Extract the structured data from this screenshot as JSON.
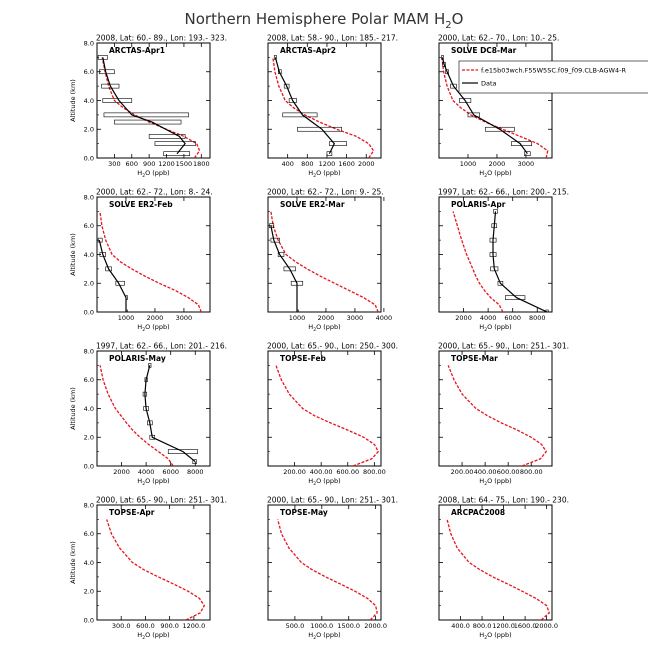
{
  "figure": {
    "title": "Northern Hemisphere Polar MAM H",
    "title_sub": "2",
    "title_tail": "O",
    "xlabel_main": "H",
    "xlabel_sub": "2",
    "xlabel_tail": "O (ppb)",
    "ylabel": "Altitude (km)",
    "legend": {
      "model_label": "f.e15b03wch.F55W5SC.f09_f09.CLB-AGW4-R",
      "obs_label": "Data"
    },
    "colors": {
      "model": "#e8141c",
      "obs": "#000000",
      "axis": "#000000"
    }
  },
  "chart_data": [
    {
      "type": "line",
      "header": "2008, Lat: 60.- 89., Lon: 193.- 323.",
      "campaign": "ARCTAS-Apr1",
      "xlim": [
        0,
        1950
      ],
      "ylim": [
        0,
        8
      ],
      "xticks": [
        300,
        600,
        900,
        1200,
        1500,
        1800
      ],
      "xticklabels": [
        "300",
        "600",
        "900",
        "1200",
        "1500",
        "1800"
      ],
      "yticks": [
        0,
        2,
        4,
        6,
        8
      ],
      "yticklabels": [
        "0.0",
        "2.0",
        "4.0",
        "6.0",
        "8.0"
      ],
      "series": [
        {
          "role": "model",
          "x": [
            1680,
            1770,
            1720,
            1500,
            1200,
            900,
            650,
            450,
            300,
            200,
            140,
            90
          ],
          "y": [
            0,
            0.5,
            1,
            1.5,
            2,
            2.5,
            3,
            3.5,
            4,
            5,
            6,
            7
          ]
        },
        {
          "role": "obs",
          "x": [
            1380,
            1520,
            1420,
            950,
            600,
            380,
            230,
            150,
            100
          ],
          "y": [
            0.3,
            1,
            1.5,
            2.5,
            3,
            4,
            5,
            6,
            7
          ],
          "xerr_lo": [
            1150,
            1000,
            900,
            300,
            120,
            100,
            80,
            40,
            20
          ],
          "xerr_hi": [
            1600,
            1700,
            1520,
            1450,
            1580,
            600,
            380,
            300,
            180
          ]
        }
      ]
    },
    {
      "type": "line",
      "header": "2008, Lat: 58.- 90., Lon: 185.- 217.",
      "campaign": "ARCTAS-Apr2",
      "xlim": [
        0,
        2300
      ],
      "ylim": [
        0,
        8
      ],
      "xticks": [
        400,
        800,
        1200,
        1600,
        2000
      ],
      "xticklabels": [
        "400",
        "800",
        "1200",
        "1600",
        "2000"
      ],
      "yticks": [
        0,
        2,
        4,
        6,
        8
      ],
      "yticklabels": [
        "0.0",
        "2.0",
        "4.0",
        "6.0",
        "8.0"
      ],
      "series": [
        {
          "role": "model",
          "x": [
            2050,
            2150,
            2050,
            1800,
            1400,
            1050,
            750,
            520,
            350,
            220,
            140,
            100
          ],
          "y": [
            0,
            0.5,
            1,
            1.5,
            2,
            2.5,
            3,
            3.5,
            4,
            5,
            6,
            7
          ]
        },
        {
          "role": "obs",
          "x": [
            1250,
            1350,
            1100,
            700,
            500,
            380,
            230,
            150
          ],
          "y": [
            0.3,
            1,
            2,
            3,
            4,
            5,
            6,
            7
          ],
          "xerr_lo": [
            1200,
            1250,
            600,
            300,
            430,
            330,
            210,
            130
          ],
          "xerr_hi": [
            1300,
            1600,
            1500,
            1000,
            580,
            430,
            270,
            170
          ]
        }
      ]
    },
    {
      "type": "line",
      "header": "2000, Lat: 62.- 70., Lon: 10.- 25.",
      "campaign": "SOLVE DC8-Mar",
      "xlim": [
        0,
        3900
      ],
      "ylim": [
        0,
        8
      ],
      "xticks": [
        1000,
        2000,
        3000
      ],
      "xticklabels": [
        "1000",
        "2000",
        "3000"
      ],
      "yticks": [
        0,
        2,
        4,
        6,
        8
      ],
      "yticklabels": [
        "0.0",
        "2.0",
        "4.0",
        "6.0",
        "8.0"
      ],
      "series": [
        {
          "role": "model",
          "x": [
            3700,
            3750,
            3400,
            2800,
            2200,
            1600,
            1100,
            750,
            480,
            280,
            160,
            100
          ],
          "y": [
            0,
            0.5,
            1,
            1.5,
            2,
            2.5,
            3,
            3.5,
            4,
            5,
            6,
            7
          ]
        },
        {
          "role": "obs",
          "x": [
            3050,
            2800,
            2100,
            1200,
            900,
            500,
            280,
            180,
            120
          ],
          "y": [
            0.3,
            1,
            2,
            3,
            4,
            5,
            6,
            6.5,
            7
          ],
          "xerr_lo": [
            2950,
            2500,
            1600,
            1000,
            700,
            400,
            230,
            130,
            90
          ],
          "xerr_hi": [
            3150,
            3200,
            2600,
            1400,
            1100,
            600,
            330,
            230,
            150
          ]
        }
      ]
    },
    {
      "type": "line",
      "header": "2000, Lat: 62.- 72., Lon: 8.- 24.",
      "campaign": "SOLVE ER2-Feb",
      "xlim": [
        0,
        3900
      ],
      "ylim": [
        0,
        8
      ],
      "xticks": [
        1000,
        2000,
        3000
      ],
      "xticklabels": [
        "1000",
        "2000",
        "3000"
      ],
      "yticks": [
        0,
        2,
        4,
        6,
        8
      ],
      "yticklabels": [
        "0.0",
        "2.0",
        "4.0",
        "6.0",
        "8.0"
      ],
      "series": [
        {
          "role": "model",
          "x": [
            3600,
            3500,
            3150,
            2700,
            2150,
            1650,
            1200,
            800,
            520,
            300,
            170,
            100
          ],
          "y": [
            0,
            0.5,
            1,
            1.5,
            2,
            2.5,
            3,
            3.5,
            4,
            5,
            6,
            7
          ]
        },
        {
          "role": "obs",
          "x": [
            1000,
            1000,
            750,
            400,
            200,
            80
          ],
          "y": [
            0,
            1,
            2,
            3,
            4,
            5
          ],
          "xerr_lo": [
            1000,
            1000,
            650,
            300,
            100,
            40
          ],
          "xerr_hi": [
            1000,
            1000,
            950,
            500,
            300,
            180
          ]
        }
      ]
    },
    {
      "type": "line",
      "header": "2000, Lat: 62.- 72., Lon: 9.- 25.",
      "campaign": "SOLVE ER2-Mar",
      "xlim": [
        0,
        3900
      ],
      "ylim": [
        0,
        8
      ],
      "xticks": [
        1000,
        2000,
        3000,
        4000
      ],
      "xticklabels": [
        "1000",
        "2000",
        "3000",
        "4000"
      ],
      "yticks": [
        0,
        2,
        4,
        6,
        8
      ],
      "yticklabels": [
        "0.0",
        "2.0",
        "4.0",
        "6.0",
        "8.0"
      ],
      "series": [
        {
          "role": "model",
          "x": [
            3800,
            3700,
            3300,
            2800,
            2300,
            1800,
            1350,
            950,
            620,
            350,
            180,
            100
          ],
          "y": [
            0,
            0.5,
            1,
            1.5,
            2,
            2.5,
            3,
            3.5,
            4,
            5,
            6,
            7
          ]
        },
        {
          "role": "obs",
          "x": [
            1000,
            1000,
            750,
            400,
            200,
            100
          ],
          "y": [
            0,
            2,
            3,
            4,
            5,
            6
          ],
          "xerr_lo": [
            1000,
            800,
            550,
            350,
            100,
            50
          ],
          "xerr_hi": [
            1000,
            1200,
            950,
            550,
            400,
            200
          ]
        }
      ]
    },
    {
      "type": "line",
      "header": "1997, Lat: 62.- 66., Lon: 200.- 215.",
      "campaign": "POLARIS-Apr",
      "xlim": [
        0,
        9200
      ],
      "ylim": [
        0,
        8
      ],
      "xticks": [
        2000,
        4000,
        6000,
        8000
      ],
      "xticklabels": [
        "2000",
        "4000",
        "6000",
        "8000"
      ],
      "yticks": [
        0,
        2,
        4,
        6,
        8
      ],
      "yticklabels": [
        "0.0",
        "2.0",
        "4.0",
        "6.0",
        "8.0"
      ],
      "series": [
        {
          "role": "model",
          "x": [
            5200,
            4900,
            4200,
            3700,
            3300,
            3000,
            2750,
            2500,
            2250,
            1850,
            1500,
            1150
          ],
          "y": [
            0,
            0.5,
            1,
            1.5,
            2,
            2.5,
            3,
            3.5,
            4,
            5,
            6,
            7
          ]
        },
        {
          "role": "obs",
          "x": [
            8800,
            6300,
            5000,
            4500,
            4400,
            4400,
            4500,
            4600
          ],
          "y": [
            0,
            1,
            2,
            3,
            4,
            5,
            6,
            7
          ],
          "xerr_lo": [
            8700,
            5400,
            4800,
            4200,
            4150,
            4150,
            4300,
            4450
          ],
          "xerr_hi": [
            8900,
            7000,
            5200,
            4800,
            4650,
            4650,
            4700,
            4750
          ]
        }
      ]
    },
    {
      "type": "line",
      "header": "1997, Lat: 62.- 66., Lon: 201.- 216.",
      "campaign": "POLARIS-May",
      "xlim": [
        0,
        9200
      ],
      "ylim": [
        0,
        8
      ],
      "xticks": [
        2000,
        4000,
        6000,
        8000
      ],
      "xticklabels": [
        "2000",
        "4000",
        "6000",
        "8000"
      ],
      "yticks": [
        0,
        2,
        4,
        6,
        8
      ],
      "yticklabels": [
        "0.0",
        "2.0",
        "4.0",
        "6.0",
        "8.0"
      ],
      "series": [
        {
          "role": "model",
          "x": [
            6200,
            5800,
            5000,
            4200,
            3500,
            2900,
            2400,
            1950,
            1500,
            900,
            500,
            250
          ],
          "y": [
            0,
            0.5,
            1,
            1.5,
            2,
            2.5,
            3,
            3.5,
            4,
            5,
            6,
            7
          ]
        },
        {
          "role": "obs",
          "x": [
            8000,
            7000,
            4500,
            4300,
            4000,
            3900,
            4000,
            4300
          ],
          "y": [
            0.3,
            1,
            2,
            3,
            4,
            5,
            6,
            7
          ],
          "xerr_lo": [
            7800,
            5800,
            4300,
            4100,
            3800,
            3750,
            3900,
            4200
          ],
          "xerr_hi": [
            8100,
            8200,
            4700,
            4500,
            4200,
            4050,
            4100,
            4400
          ]
        }
      ]
    },
    {
      "type": "line",
      "header": "2000, Lat: 65.- 90., Lon: 250.- 300.",
      "campaign": "TOPSE-Feb",
      "xlim": [
        0,
        850
      ],
      "ylim": [
        0,
        8
      ],
      "xticks": [
        200,
        400,
        600,
        800
      ],
      "xticklabels": [
        "200.00",
        "400.00",
        "600.00",
        "800.00"
      ],
      "yticks": [
        0,
        2,
        4,
        6,
        8
      ],
      "yticklabels": [
        "0.0",
        "2.0",
        "4.0",
        "6.0",
        "8.0"
      ],
      "series": [
        {
          "role": "model",
          "x": [
            640,
            780,
            830,
            800,
            720,
            600,
            470,
            350,
            260,
            160,
            100,
            60
          ],
          "y": [
            0,
            0.5,
            1,
            1.5,
            2,
            2.5,
            3,
            3.5,
            4,
            5,
            6,
            7
          ]
        }
      ]
    },
    {
      "type": "line",
      "header": "2000, Lat: 65.- 90., Lon: 251.- 301.",
      "campaign": "TOPSE-Mar",
      "xlim": [
        0,
        980
      ],
      "ylim": [
        0,
        8
      ],
      "xticks": [
        200,
        400,
        600,
        800
      ],
      "xticklabels": [
        "200.00",
        "400.00",
        "600.00",
        "800.00"
      ],
      "yticks": [
        0,
        2,
        4,
        6,
        8
      ],
      "yticklabels": [
        "0.0",
        "2.0",
        "4.0",
        "6.0",
        "8.0"
      ],
      "series": [
        {
          "role": "model",
          "x": [
            720,
            880,
            930,
            890,
            800,
            680,
            540,
            420,
            320,
            200,
            130,
            80
          ],
          "y": [
            0,
            0.5,
            1,
            1.5,
            2,
            2.5,
            3,
            3.5,
            4,
            5,
            6,
            7
          ]
        }
      ]
    },
    {
      "type": "line",
      "header": "2000, Lat: 65.- 90., Lon: 251.- 301.",
      "campaign": "TOPSE-Apr",
      "xlim": [
        0,
        1400
      ],
      "ylim": [
        0,
        8
      ],
      "xticks": [
        300,
        600,
        900,
        1200
      ],
      "xticklabels": [
        "300.0",
        "600.0",
        "900.0",
        "1200.0"
      ],
      "yticks": [
        0,
        2,
        4,
        6,
        8
      ],
      "yticklabels": [
        "0.0",
        "2.0",
        "4.0",
        "6.0",
        "8.0"
      ],
      "series": [
        {
          "role": "model",
          "x": [
            1100,
            1280,
            1330,
            1270,
            1130,
            950,
            760,
            580,
            440,
            280,
            180,
            120
          ],
          "y": [
            0,
            0.5,
            1,
            1.5,
            2,
            2.5,
            3,
            3.5,
            4,
            5,
            6,
            7
          ]
        }
      ]
    },
    {
      "type": "line",
      "header": "2000, Lat: 65.- 90., Lon: 251.- 301.",
      "campaign": "TOPSE-May",
      "xlim": [
        0,
        2100
      ],
      "ylim": [
        0,
        8
      ],
      "xticks": [
        500,
        1000,
        1500,
        2000
      ],
      "xticklabels": [
        "500.0",
        "1000.0",
        "1500.0",
        "2000.0"
      ],
      "yticks": [
        0,
        2,
        4,
        6,
        8
      ],
      "yticklabels": [
        "0.0",
        "2.0",
        "4.0",
        "6.0",
        "8.0"
      ],
      "series": [
        {
          "role": "model",
          "x": [
            1900,
            2030,
            2000,
            1850,
            1620,
            1350,
            1070,
            820,
            620,
            390,
            250,
            180
          ],
          "y": [
            0,
            0.5,
            1,
            1.5,
            2,
            2.5,
            3,
            3.5,
            4,
            5,
            6,
            7
          ]
        }
      ]
    },
    {
      "type": "line",
      "header": "2008, Lat: 64.- 75., Lon: 190.- 230.",
      "campaign": "ARCPAC2008",
      "xlim": [
        0,
        2100
      ],
      "ylim": [
        0,
        8
      ],
      "xticks": [
        400,
        800,
        1200,
        1600,
        2000
      ],
      "xticklabels": [
        "400.0",
        "800.0",
        "1200.0",
        "1600.0",
        "2000.0"
      ],
      "yticks": [
        0,
        2,
        4,
        6,
        8
      ],
      "yticklabels": [
        "0.0",
        "2.0",
        "4.0",
        "6.0",
        "8.0"
      ],
      "series": [
        {
          "role": "model",
          "x": [
            1900,
            2050,
            2000,
            1800,
            1550,
            1280,
            1000,
            760,
            560,
            340,
            220,
            150
          ],
          "y": [
            0,
            0.5,
            1,
            1.5,
            2,
            2.5,
            3,
            3.5,
            4,
            5,
            6,
            7
          ]
        }
      ]
    }
  ]
}
